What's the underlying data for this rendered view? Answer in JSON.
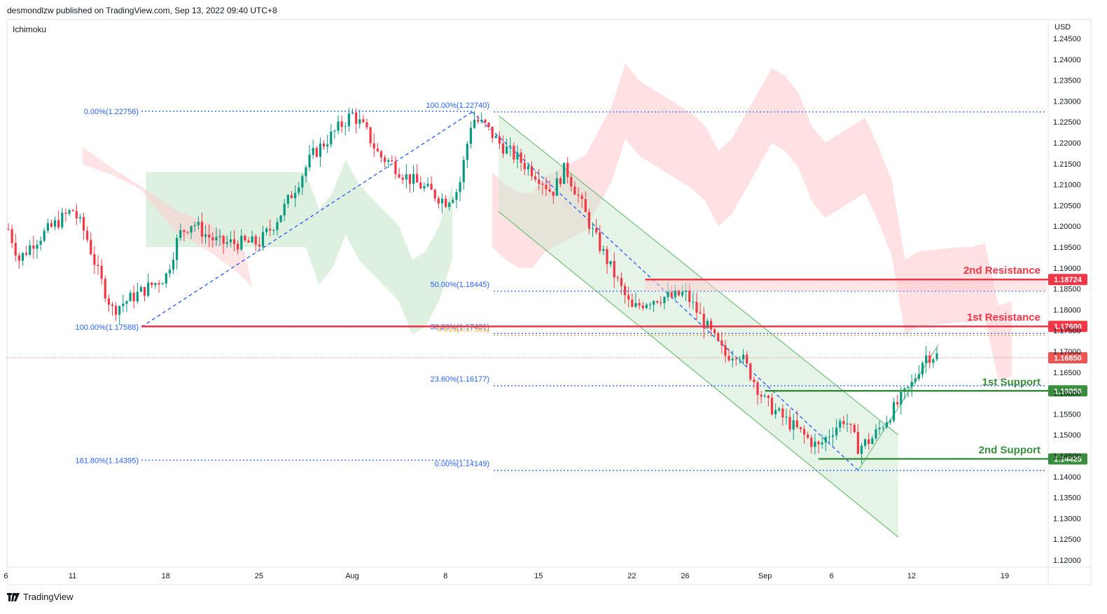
{
  "header": {
    "published_by": "desmondlzw published on TradingView.com, Sep 13, 2022 09:40 UTC+8",
    "indicator": "Ichimoku",
    "currency": "USD"
  },
  "footer": {
    "brand": "TradingView",
    "logo_icon": "tradingview-logo-icon"
  },
  "colors": {
    "bull": "#26a69a",
    "bear": "#ef5350",
    "candle_green": "#089981",
    "candle_red": "#f23645",
    "fib": "#2962ff",
    "resistance": "#f23645",
    "support": "#388e3c",
    "channel": "#81c784",
    "cloud_bull": "#c8e6c9",
    "cloud_bear": "#ffcdd2",
    "golden": "#f9a825"
  },
  "chart_data": {
    "type": "candlestick",
    "symbol_currency": "USD",
    "ylim": [
      1.1175,
      1.2475
    ],
    "y_ticks": [
      "1.24500",
      "1.24000",
      "1.23500",
      "1.23000",
      "1.22500",
      "1.22000",
      "1.21500",
      "1.21000",
      "1.20500",
      "1.20000",
      "1.19500",
      "1.19000",
      "1.18500",
      "1.18000",
      "1.17500",
      "1.17000",
      "1.16500",
      "1.16000",
      "1.15500",
      "1.15000",
      "1.14500",
      "1.14000",
      "1.13500",
      "1.13000",
      "1.12500",
      "1.12000"
    ],
    "x_ticks": [
      {
        "label": "6",
        "date": "2022-07-06"
      },
      {
        "label": "11",
        "date": "2022-07-11"
      },
      {
        "label": "18",
        "date": "2022-07-18"
      },
      {
        "label": "25",
        "date": "2022-07-25"
      },
      {
        "label": "Aug",
        "date": "2022-08-01"
      },
      {
        "label": "8",
        "date": "2022-08-08"
      },
      {
        "label": "15",
        "date": "2022-08-15"
      },
      {
        "label": "22",
        "date": "2022-08-22"
      },
      {
        "label": "26",
        "date": "2022-08-26"
      },
      {
        "label": "Sep",
        "date": "2022-09-01"
      },
      {
        "label": "6",
        "date": "2022-09-06"
      },
      {
        "label": "12",
        "date": "2022-09-12"
      },
      {
        "label": "19",
        "date": "2022-09-19"
      }
    ],
    "price_path": [
      [
        "2022-07-06",
        1.201
      ],
      [
        "2022-07-07",
        1.192
      ],
      [
        "2022-07-08",
        1.196
      ],
      [
        "2022-07-11",
        1.204
      ],
      [
        "2022-07-12",
        1.198
      ],
      [
        "2022-07-13",
        1.188
      ],
      [
        "2022-07-14",
        1.18
      ],
      [
        "2022-07-15",
        1.182
      ],
      [
        "2022-07-18",
        1.188
      ],
      [
        "2022-07-19",
        1.198
      ],
      [
        "2022-07-20",
        1.201
      ],
      [
        "2022-07-21",
        1.198
      ],
      [
        "2022-07-22",
        1.196
      ],
      [
        "2022-07-25",
        1.196
      ],
      [
        "2022-07-26",
        1.2
      ],
      [
        "2022-07-27",
        1.205
      ],
      [
        "2022-07-28",
        1.211
      ],
      [
        "2022-07-29",
        1.217
      ],
      [
        "2022-08-01",
        1.227
      ],
      [
        "2022-08-02",
        1.223
      ],
      [
        "2022-08-03",
        1.217
      ],
      [
        "2022-08-04",
        1.215
      ],
      [
        "2022-08-05",
        1.212
      ],
      [
        "2022-08-08",
        1.206
      ],
      [
        "2022-08-09",
        1.209
      ],
      [
        "2022-08-10",
        1.226
      ],
      [
        "2022-08-11",
        1.224
      ],
      [
        "2022-08-12",
        1.22
      ],
      [
        "2022-08-15",
        1.212
      ],
      [
        "2022-08-16",
        1.208
      ],
      [
        "2022-08-17",
        1.214
      ],
      [
        "2022-08-18",
        1.207
      ],
      [
        "2022-08-19",
        1.199
      ],
      [
        "2022-08-22",
        1.18
      ],
      [
        "2022-08-23",
        1.182
      ],
      [
        "2022-08-24",
        1.183
      ],
      [
        "2022-08-25",
        1.183
      ],
      [
        "2022-08-26",
        1.184
      ],
      [
        "2022-08-29",
        1.169
      ],
      [
        "2022-08-30",
        1.17
      ],
      [
        "2022-08-31",
        1.164
      ],
      [
        "2022-09-01",
        1.158
      ],
      [
        "2022-09-02",
        1.155
      ],
      [
        "2022-09-05",
        1.147
      ],
      [
        "2022-09-06",
        1.151
      ],
      [
        "2022-09-07",
        1.154
      ],
      [
        "2022-09-08",
        1.147
      ],
      [
        "2022-09-09",
        1.149
      ],
      [
        "2022-09-12",
        1.162
      ],
      [
        "2022-09-13",
        1.169
      ]
    ],
    "last_price": {
      "label": "1.16850",
      "value": 1.1685
    },
    "fibonacci_left": [
      {
        "label": "0.00%(1.22756)",
        "value": 1.22756
      },
      {
        "label": "100.00%(1.17588)",
        "value": 1.17588
      },
      {
        "label": "161.80%(1.14395)",
        "value": 1.14395
      }
    ],
    "fibonacci_right": [
      {
        "label": "100.00%(1.22740)",
        "value": 1.2274
      },
      {
        "label": "50.00%(1.18445)",
        "value": 1.18445
      },
      {
        "label": "38.20%(1.17431)",
        "value": 1.17431
      },
      {
        "label": "0.618(1.17381)",
        "value": 1.17381
      },
      {
        "label": "23.60%(1.16177)",
        "value": 1.16177
      },
      {
        "label": "0.00%(1.14149)",
        "value": 1.14149
      }
    ],
    "levels": [
      {
        "name": "2nd Resistance",
        "label": "1.18724",
        "value": 1.18724,
        "kind": "resistance"
      },
      {
        "name": "1st Resistance",
        "label": "1.17600",
        "value": 1.176,
        "kind": "resistance"
      },
      {
        "name": "1st Support",
        "label": "1.16056",
        "value": 1.16056,
        "kind": "support"
      },
      {
        "name": "2nd Support",
        "label": "1.14425",
        "value": 1.14425,
        "kind": "support"
      }
    ]
  }
}
